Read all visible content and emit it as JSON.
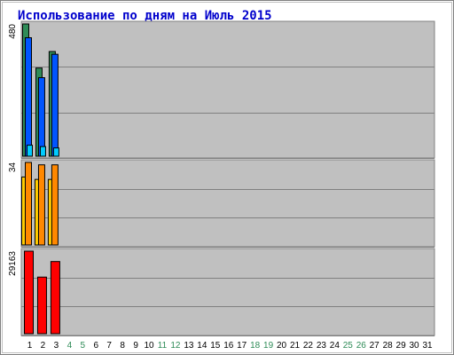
{
  "title": "Использование по дням на Июль 2015",
  "chart_data": {
    "type": "bar",
    "title": "Использование по дням на Июль 2015",
    "days": [
      1,
      2,
      3,
      4,
      5,
      6,
      7,
      8,
      9,
      10,
      11,
      12,
      13,
      14,
      15,
      16,
      17,
      18,
      19,
      20,
      21,
      22,
      23,
      24,
      25,
      26,
      27,
      28,
      29,
      30,
      31
    ],
    "weekend_days": [
      4,
      5,
      11,
      12,
      18,
      19,
      25,
      26
    ],
    "grid": true,
    "panels": [
      {
        "max_label": "480",
        "ymax": 480,
        "series": [
          {
            "color": "#2e8b57",
            "values": [
              480,
              320,
              380
            ]
          },
          {
            "color": "#0055ff",
            "values": [
              430,
              285,
              370
            ]
          },
          {
            "color": "#00ccff",
            "values": [
              40,
              35,
              30
            ]
          }
        ]
      },
      {
        "max_label": "34",
        "ymax": 34,
        "series": [
          {
            "color": "#ffcc00",
            "values": [
              28,
              27,
              27
            ]
          },
          {
            "color": "#ff8800",
            "values": [
              34,
              33,
              33
            ]
          }
        ]
      },
      {
        "max_label": "29163",
        "ymax": 29163,
        "series": [
          {
            "color": "#ff0000",
            "values": [
              29163,
              20000,
              25500
            ]
          }
        ]
      }
    ],
    "colors": {
      "plot_bg": "#c0c0c0",
      "gridline": "#808080",
      "weekday_label": "#000000",
      "weekend_label": "#2e8b57",
      "frame": "#808080"
    }
  }
}
